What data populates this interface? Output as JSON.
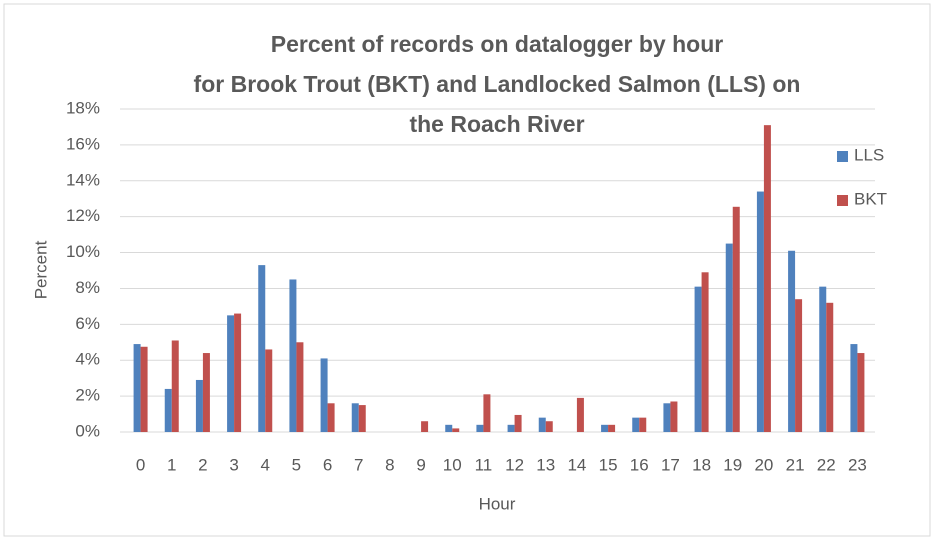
{
  "chart_data": {
    "type": "bar",
    "title": [
      "Percent of records on datalogger by hour",
      "for Brook Trout (BKT) and Landlocked Salmon (LLS) on",
      "the Roach River"
    ],
    "x_label": "Hour",
    "y_label": "Percent",
    "categories": [
      "0",
      "1",
      "2",
      "3",
      "4",
      "5",
      "6",
      "7",
      "8",
      "9",
      "10",
      "11",
      "12",
      "13",
      "14",
      "15",
      "16",
      "17",
      "18",
      "19",
      "20",
      "21",
      "22",
      "23"
    ],
    "series": [
      {
        "name": "LLS",
        "color": "#4f81bd",
        "values": [
          4.9,
          2.4,
          2.9,
          6.5,
          9.3,
          8.5,
          4.1,
          1.6,
          0,
          0,
          0.4,
          0.4,
          0.4,
          0.8,
          0,
          0.4,
          0.8,
          1.6,
          8.1,
          10.5,
          13.4,
          10.1,
          8.1,
          4.9
        ]
      },
      {
        "name": "BKT",
        "color": "#c0504d",
        "values": [
          4.75,
          5.1,
          4.4,
          6.6,
          4.6,
          5.0,
          1.6,
          1.5,
          0,
          0.6,
          0.2,
          2.1,
          0.95,
          0.6,
          1.9,
          0.4,
          0.8,
          1.7,
          8.9,
          12.55,
          17.1,
          7.4,
          7.2,
          4.4
        ]
      }
    ],
    "ylim": [
      0,
      18
    ],
    "yticks": [
      {
        "value": 0,
        "label": "0%"
      },
      {
        "value": 2,
        "label": "2%"
      },
      {
        "value": 4,
        "label": "4%"
      },
      {
        "value": 6,
        "label": "6%"
      },
      {
        "value": 8,
        "label": "8%"
      },
      {
        "value": 10,
        "label": "10%"
      },
      {
        "value": 12,
        "label": "12%"
      },
      {
        "value": 14,
        "label": "14%"
      },
      {
        "value": 16,
        "label": "16%"
      },
      {
        "value": 18,
        "label": "18%"
      }
    ],
    "grid": true,
    "legend": "right"
  }
}
